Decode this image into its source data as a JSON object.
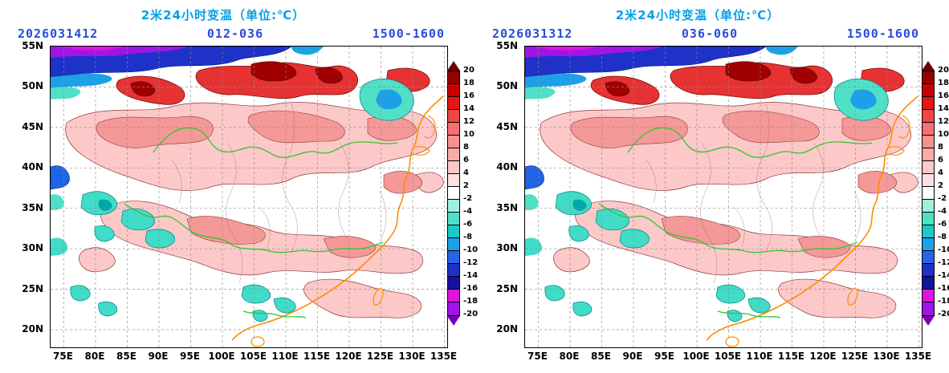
{
  "panels": [
    {
      "title": "2米24小时变温（单位:℃）",
      "init_time": "2026031412",
      "forecast_hours": "012-036",
      "label_right": "1500-1600"
    },
    {
      "title": "2米24小时变温（单位:℃）",
      "init_time": "2026031312",
      "forecast_hours": "036-060",
      "label_right": "1500-1600"
    }
  ],
  "axes": {
    "lat": [
      "55N",
      "50N",
      "45N",
      "40N",
      "35N",
      "30N",
      "25N",
      "20N"
    ],
    "lon": [
      "75E",
      "80E",
      "85E",
      "90E",
      "95E",
      "100E",
      "105E",
      "110E",
      "115E",
      "120E",
      "125E",
      "130E",
      "135E"
    ]
  },
  "colorbar": {
    "labels": [
      "20",
      "18",
      "16",
      "14",
      "12",
      "10",
      "8",
      "6",
      "4",
      "2",
      "-2",
      "-4",
      "-6",
      "-8",
      "-10",
      "-12",
      "-14",
      "-16",
      "-18",
      "-20"
    ],
    "top_arrow_color": "#6E0000",
    "bottom_arrow_color": "#7800B4",
    "cell_colors": [
      "#960000",
      "#C80000",
      "#E61414",
      "#F04646",
      "#F57070",
      "#F89090",
      "#FAAAAA",
      "#FCC8C8",
      "#FDE0E0",
      "#FFFFFF",
      "#9CF0DC",
      "#50E0C8",
      "#1EC8C8",
      "#1EA0E6",
      "#2864E6",
      "#1E32C8",
      "#1410A0",
      "#DC14DC",
      "#A014E6"
    ]
  },
  "colors": {
    "title_text": "#00A0E8",
    "header_text": "#2B4BD8",
    "gridline": "#8C8C8C",
    "coastline": "#FF8C00",
    "river": "#2EC82E",
    "contour": "#8B3A3A"
  },
  "chart_data": {
    "type": "heatmap",
    "title": "2米24小时变温（单位:℃）",
    "variable": "2-m 24-hour temperature change",
    "units": "℃",
    "panels": [
      {
        "init_time": "2026031412",
        "forecast_hours": "012-036",
        "label_right": "1500-1600"
      },
      {
        "init_time": "2026031312",
        "forecast_hours": "036-060",
        "label_right": "1500-1600"
      }
    ],
    "x_ticks": [
      "75E",
      "80E",
      "85E",
      "90E",
      "95E",
      "100E",
      "105E",
      "110E",
      "115E",
      "120E",
      "125E",
      "130E",
      "135E"
    ],
    "y_ticks": [
      "55N",
      "50N",
      "45N",
      "40N",
      "35N",
      "30N",
      "25N",
      "20N"
    ],
    "x_range": [
      "75E",
      "135E"
    ],
    "y_range": [
      "20N",
      "55N"
    ],
    "contour_levels": [
      -20,
      -18,
      -16,
      -14,
      -12,
      -10,
      -8,
      -6,
      -4,
      -2,
      2,
      4,
      6,
      8,
      10,
      12,
      14,
      16,
      18,
      20
    ],
    "legend_position": "right",
    "grid": true,
    "description": "Filled contour maps over China: strong cooling (blue/purple, below -12) band along the northern edge near 55N, strong warming cores (dark red, above 14) across 48-53N, widespread weak warming (pink, 2-6) over central China, scattered weak cooling (cyan, -2 to -6) over the Tibetan Plateau, far west, northeast near 122E 50N, and parts of the southwest."
  }
}
